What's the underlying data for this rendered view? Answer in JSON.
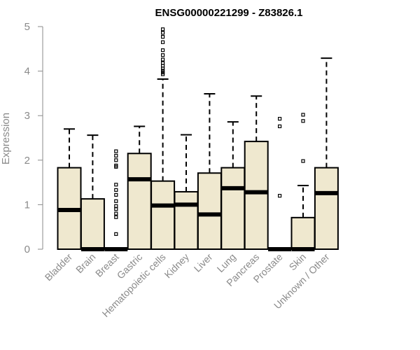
{
  "chart_data": {
    "type": "boxplot",
    "title": "ENSG00000221299 - Z83826.1",
    "ylabel": "Expression",
    "ylim": [
      0,
      5
    ],
    "yticks": [
      0,
      1,
      2,
      3,
      4,
      5
    ],
    "box_fill": "#efe8cf",
    "box_stroke": "#000000",
    "categories": [
      "Bladder",
      "Brain",
      "Breast",
      "Gastric",
      "Hematopoietic cells",
      "Kidney",
      "Liver",
      "Lung",
      "Pancreas",
      "Prostate",
      "Skin",
      "Unknown / Other"
    ],
    "boxes": [
      {
        "name": "Bladder",
        "q1": 0.0,
        "median": 0.88,
        "q3": 1.83,
        "whisker_low": 0.0,
        "whisker_high": 2.7,
        "outliers": []
      },
      {
        "name": "Brain",
        "q1": 0.0,
        "median": 0.0,
        "q3": 1.13,
        "whisker_low": 0.0,
        "whisker_high": 2.56,
        "outliers": []
      },
      {
        "name": "Breast",
        "q1": 0.0,
        "median": 0.0,
        "q3": 0.0,
        "whisker_low": 0.0,
        "whisker_high": 0.0,
        "outliers": [
          0.34,
          0.72,
          0.8,
          0.9,
          0.97,
          1.08,
          1.22,
          1.33,
          1.45,
          1.85,
          1.88,
          2.0,
          2.1,
          2.2
        ]
      },
      {
        "name": "Gastric",
        "q1": 0.0,
        "median": 1.57,
        "q3": 2.15,
        "whisker_low": 0.0,
        "whisker_high": 2.76,
        "outliers": []
      },
      {
        "name": "Hematopoietic cells",
        "q1": 0.0,
        "median": 0.98,
        "q3": 1.53,
        "whisker_low": 0.0,
        "whisker_high": 3.82,
        "outliers": [
          3.93,
          3.97,
          4.01,
          4.06,
          4.12,
          4.18,
          4.26,
          4.36,
          4.47,
          4.65,
          4.77,
          4.86,
          4.94
        ]
      },
      {
        "name": "Kidney",
        "q1": 0.0,
        "median": 1.0,
        "q3": 1.29,
        "whisker_low": 0.0,
        "whisker_high": 2.57,
        "outliers": []
      },
      {
        "name": "Liver",
        "q1": 0.0,
        "median": 0.78,
        "q3": 1.71,
        "whisker_low": 0.0,
        "whisker_high": 3.49,
        "outliers": []
      },
      {
        "name": "Lung",
        "q1": 0.0,
        "median": 1.37,
        "q3": 1.83,
        "whisker_low": 0.0,
        "whisker_high": 2.86,
        "outliers": []
      },
      {
        "name": "Pancreas",
        "q1": 0.0,
        "median": 1.28,
        "q3": 2.42,
        "whisker_low": 0.0,
        "whisker_high": 3.44,
        "outliers": []
      },
      {
        "name": "Prostate",
        "q1": 0.0,
        "median": 0.0,
        "q3": 0.0,
        "whisker_low": 0.0,
        "whisker_high": 0.0,
        "outliers": [
          1.2,
          2.76,
          2.93
        ]
      },
      {
        "name": "Skin",
        "q1": 0.0,
        "median": 0.0,
        "q3": 0.71,
        "whisker_low": 0.0,
        "whisker_high": 1.43,
        "outliers": [
          1.98,
          2.88,
          3.02
        ]
      },
      {
        "name": "Unknown / Other",
        "q1": 0.0,
        "median": 1.26,
        "q3": 1.83,
        "whisker_low": 0.0,
        "whisker_high": 4.29,
        "outliers": []
      }
    ]
  }
}
